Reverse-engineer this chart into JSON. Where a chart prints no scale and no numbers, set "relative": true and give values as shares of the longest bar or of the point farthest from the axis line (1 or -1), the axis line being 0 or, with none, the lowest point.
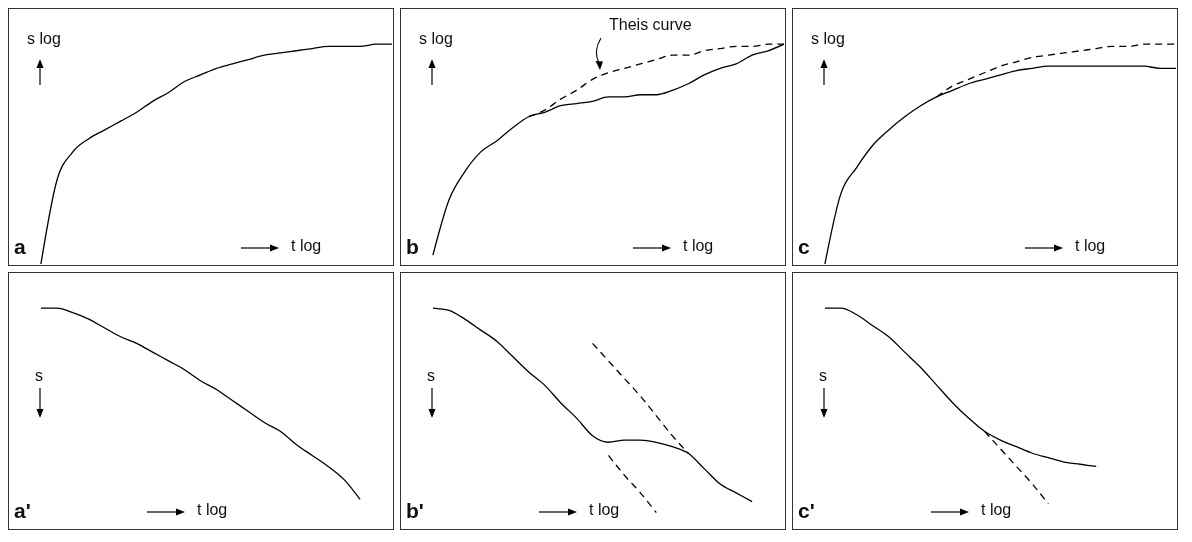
{
  "chart_data": [
    {
      "type": "line",
      "relative": true,
      "title": "a",
      "xlabel": "t log",
      "ylabel": "s log",
      "categories": [
        null,
        null,
        null,
        null,
        null,
        null,
        null,
        null,
        null,
        null,
        null,
        null,
        null,
        null,
        null,
        null,
        null,
        null,
        null,
        null,
        null,
        null,
        null,
        null,
        null
      ],
      "series": [
        {
          "color": "#000000",
          "line_style": "solid",
          "values": [
            null,
            null,
            0,
            0.38,
            0.51,
            0.57,
            0.61,
            0.65,
            0.69,
            0.74,
            0.78,
            0.83,
            0.86,
            0.89,
            0.91,
            0.93,
            0.95,
            0.96,
            0.97,
            0.98,
            0.99,
            0.99,
            0.99,
            1.0,
            1
          ]
        }
      ]
    },
    {
      "type": "line",
      "relative": true,
      "title": "b",
      "xlabel": "t log",
      "ylabel": "s log",
      "annotations": [
        "Theis curve"
      ],
      "categories": [
        null,
        null,
        null,
        null,
        null,
        null,
        null,
        null,
        null,
        null,
        null,
        null,
        null,
        null,
        null,
        null,
        null,
        null,
        null,
        null,
        null,
        null,
        null,
        null,
        null
      ],
      "series": [
        {
          "color": "#000000",
          "line_style": "solid",
          "values": [
            null,
            null,
            0.04,
            0.29,
            0.42,
            0.51,
            0.56,
            0.62,
            0.67,
            0.69,
            0.72,
            0.73,
            0.74,
            0.76,
            0.76,
            0.77,
            0.77,
            0.79,
            0.82,
            0.86,
            0.89,
            0.91,
            0.95,
            0.97,
            1
          ]
        },
        {
          "color": "#000000",
          "line_style": "dashed",
          "values": [
            null,
            null,
            null,
            null,
            null,
            null,
            null,
            null,
            0.67,
            0.7,
            0.75,
            0.79,
            0.84,
            0.87,
            0.89,
            0.91,
            0.93,
            0.95,
            0.95,
            0.97,
            0.98,
            0.99,
            0.99,
            1.0,
            1
          ]
        }
      ]
    },
    {
      "type": "line",
      "relative": true,
      "title": "c",
      "xlabel": "t log",
      "ylabel": "s log",
      "categories": [
        null,
        null,
        null,
        null,
        null,
        null,
        null,
        null,
        null,
        null,
        null,
        null,
        null,
        null,
        null,
        null,
        null,
        null,
        null,
        null,
        null,
        null,
        null,
        null,
        null
      ],
      "series": [
        {
          "color": "#000000",
          "line_style": "solid",
          "values": [
            null,
            null,
            0,
            0.32,
            0.44,
            0.54,
            0.61,
            0.67,
            0.72,
            0.76,
            0.79,
            0.82,
            0.84,
            0.86,
            0.88,
            0.89,
            0.9,
            0.9,
            0.9,
            0.9,
            0.9,
            0.9,
            0.9,
            0.89,
            0.89
          ]
        },
        {
          "color": "#000000",
          "line_style": "dashed",
          "values": [
            null,
            null,
            null,
            null,
            null,
            null,
            null,
            null,
            null,
            0.76,
            0.81,
            0.84,
            0.87,
            0.9,
            0.92,
            0.94,
            0.95,
            0.96,
            0.97,
            0.98,
            0.99,
            0.99,
            1.0,
            1.0,
            1
          ]
        }
      ]
    },
    {
      "type": "line",
      "relative": true,
      "title": "a'",
      "xlabel": "t log",
      "ylabel": "s",
      "categories": [
        null,
        null,
        null,
        null,
        null,
        null,
        null,
        null,
        null,
        null,
        null,
        null,
        null,
        null,
        null,
        null,
        null,
        null,
        null,
        null,
        null,
        null,
        null,
        null,
        null
      ],
      "series": [
        {
          "color": "#000000",
          "line_style": "solid",
          "values": [
            null,
            null,
            1.0,
            1.0,
            0.98,
            0.95,
            0.91,
            0.87,
            0.84,
            0.8,
            0.76,
            0.72,
            0.67,
            0.63,
            0.58,
            0.53,
            0.48,
            0.44,
            0.38,
            0.33,
            0.28,
            0.22,
            0.13,
            null,
            null
          ]
        }
      ]
    },
    {
      "type": "line",
      "relative": true,
      "title": "b'",
      "xlabel": "t log",
      "ylabel": "s",
      "categories": [
        null,
        null,
        null,
        null,
        null,
        null,
        null,
        null,
        null,
        null,
        null,
        null,
        null,
        null,
        null,
        null,
        null,
        null,
        null,
        null,
        null,
        null,
        null,
        null,
        null
      ],
      "series": [
        {
          "color": "#000000",
          "line_style": "solid",
          "values": [
            null,
            null,
            1.0,
            0.99,
            0.95,
            0.9,
            0.85,
            0.78,
            0.71,
            0.65,
            0.57,
            0.5,
            0.42,
            0.39,
            0.4,
            0.4,
            0.39,
            0.37,
            0.34,
            0.27,
            0.2,
            0.16,
            0.12,
            null,
            null
          ]
        },
        {
          "color": "#000000",
          "line_style": "dashed",
          "values": [
            null,
            null,
            null,
            null,
            null,
            null,
            null,
            null,
            null,
            null,
            null,
            null,
            0.84,
            0.76,
            0.68,
            0.6,
            0.51,
            0.42,
            0.34,
            null,
            null,
            null,
            null,
            null,
            null
          ]
        },
        {
          "color": "#000000",
          "line_style": "dashed",
          "values": [
            null,
            null,
            null,
            null,
            null,
            null,
            null,
            null,
            null,
            null,
            null,
            null,
            null,
            0.33,
            0.24,
            0.16,
            0.07,
            null,
            null,
            null,
            null,
            null,
            null,
            null,
            null
          ]
        }
      ]
    },
    {
      "type": "line",
      "relative": true,
      "title": "c'",
      "xlabel": "t log",
      "ylabel": "s",
      "categories": [
        null,
        null,
        null,
        null,
        null,
        null,
        null,
        null,
        null,
        null,
        null,
        null,
        null,
        null,
        null,
        null,
        null,
        null,
        null,
        null,
        null,
        null,
        null,
        null,
        null
      ],
      "series": [
        {
          "color": "#000000",
          "line_style": "solid",
          "values": [
            null,
            null,
            1.0,
            1.0,
            0.97,
            0.92,
            0.87,
            0.8,
            0.73,
            0.65,
            0.57,
            0.5,
            0.44,
            0.4,
            0.37,
            0.34,
            0.32,
            0.3,
            0.29,
            0.28,
            null,
            null,
            null,
            null,
            null
          ]
        },
        {
          "color": "#000000",
          "line_style": "dashed",
          "values": [
            null,
            null,
            null,
            null,
            null,
            null,
            null,
            null,
            null,
            null,
            null,
            null,
            0.44,
            0.36,
            0.28,
            0.2,
            0.11,
            null,
            null,
            null,
            null,
            null,
            null,
            null,
            null
          ]
        }
      ]
    }
  ]
}
